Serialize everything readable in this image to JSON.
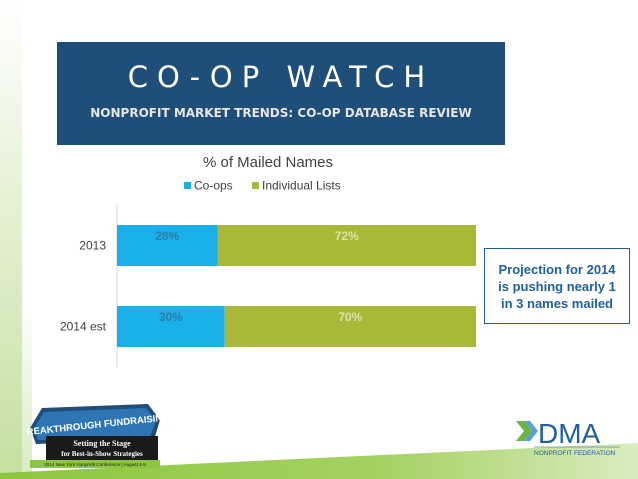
{
  "header": {
    "title": "CO-OP WATCH",
    "subtitle": "NONPROFIT MARKET TRENDS: CO-OP DATABASE REVIEW"
  },
  "chart_data": {
    "type": "bar",
    "orientation": "horizontal",
    "stacked": "percent",
    "title": "% of Mailed Names",
    "categories": [
      "2013",
      "2014 est"
    ],
    "series": [
      {
        "name": "Co-ops",
        "values": [
          28,
          30
        ],
        "labels": [
          "28%",
          "30%"
        ],
        "color": "#1ab0e8"
      },
      {
        "name": "Individual Lists",
        "values": [
          72,
          70
        ],
        "labels": [
          "72%",
          "70%"
        ],
        "color": "#aab83a"
      }
    ],
    "xlim": [
      0,
      100
    ],
    "legend": "top",
    "grid": false
  },
  "callout": {
    "text": "Projection for 2014 is pushing nearly 1 in 3 names mailed"
  },
  "logos": {
    "left_logo": {
      "main": "BREAKTHROUGH FUNDRAISING",
      "line1": "Setting the Stage",
      "line2": "for Best-in-Show Strategies",
      "footer": "2014 New York Nonprofit Conference | August 4-5"
    },
    "dma": {
      "name": "DMA",
      "tagline": "NONPROFIT FEDERATION"
    }
  },
  "colors": {
    "header_bg": "#1f4e79",
    "coops": "#1ab0e8",
    "individual": "#aab83a",
    "callout_text": "#1f5fa0",
    "band_green": "#8cc63f"
  }
}
